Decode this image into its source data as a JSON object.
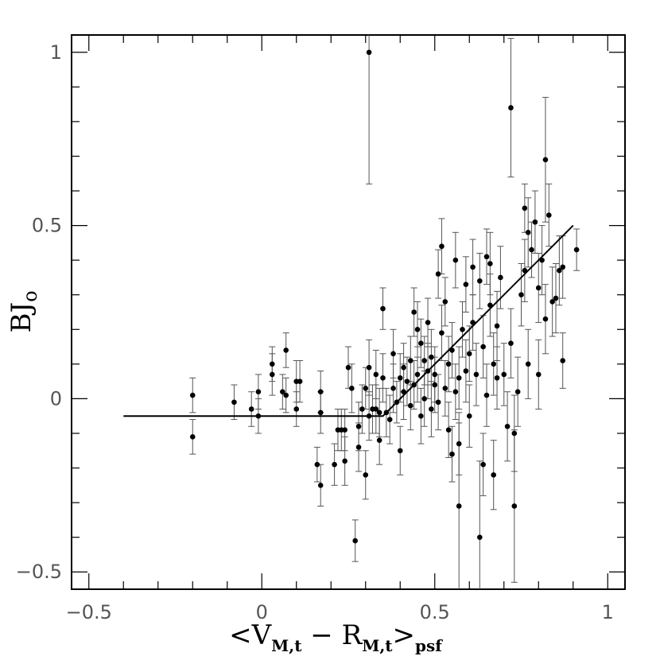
{
  "chart_data": {
    "type": "scatter",
    "title": "",
    "xlabel_main": "<V",
    "xlabel_sub1": "M,t",
    "xlabel_mid": " − R",
    "xlabel_sub2": "M,t",
    "xlabel_close": ">",
    "xlabel_sub3": "psf",
    "ylabel_main": "BJ",
    "ylabel_sub": "o",
    "xlim": [
      -0.55,
      1.05
    ],
    "ylim": [
      -0.55,
      1.05
    ],
    "xticks": [
      -0.5,
      0,
      0.5,
      1
    ],
    "xtick_labels": [
      "−0.5",
      "0",
      "0.5",
      "1"
    ],
    "yticks": [
      -0.5,
      0,
      0.5,
      1
    ],
    "ytick_labels": [
      "−0.5",
      "0",
      "0.5",
      "1"
    ],
    "grid": false,
    "fit_line": [
      [
        -0.4,
        -0.05
      ],
      [
        0.35,
        -0.05
      ],
      [
        0.9,
        0.5
      ]
    ],
    "points": [
      [
        -0.2,
        0.01,
        0.05
      ],
      [
        -0.2,
        -0.11,
        0.05
      ],
      [
        -0.08,
        -0.01,
        0.05
      ],
      [
        -0.03,
        -0.03,
        0.05
      ],
      [
        -0.01,
        0.02,
        0.05
      ],
      [
        -0.01,
        -0.05,
        0.05
      ],
      [
        0.03,
        0.1,
        0.05
      ],
      [
        0.03,
        0.07,
        0.06
      ],
      [
        0.06,
        0.02,
        0.05
      ],
      [
        0.07,
        0.14,
        0.05
      ],
      [
        0.07,
        0.01,
        0.05
      ],
      [
        0.1,
        0.05,
        0.06
      ],
      [
        0.11,
        0.05,
        0.06
      ],
      [
        0.1,
        -0.03,
        0.05
      ],
      [
        0.16,
        -0.19,
        0.05
      ],
      [
        0.17,
        -0.25,
        0.06
      ],
      [
        0.17,
        -0.04,
        0.06
      ],
      [
        0.17,
        0.02,
        0.06
      ],
      [
        0.21,
        -0.19,
        0.06
      ],
      [
        0.22,
        -0.09,
        0.06
      ],
      [
        0.23,
        -0.09,
        0.06
      ],
      [
        0.24,
        -0.18,
        0.07
      ],
      [
        0.24,
        -0.09,
        0.06
      ],
      [
        0.25,
        0.09,
        0.06
      ],
      [
        0.26,
        0.03,
        0.07
      ],
      [
        0.27,
        -0.41,
        0.06
      ],
      [
        0.28,
        -0.08,
        0.07
      ],
      [
        0.28,
        -0.14,
        0.07
      ],
      [
        0.29,
        -0.03,
        0.07
      ],
      [
        0.3,
        -0.22,
        0.07
      ],
      [
        0.3,
        0.03,
        0.06
      ],
      [
        0.31,
        0.09,
        0.08
      ],
      [
        0.31,
        -0.05,
        0.07
      ],
      [
        0.31,
        1.0,
        0.38
      ],
      [
        0.32,
        -0.03,
        0.07
      ],
      [
        0.33,
        -0.03,
        0.07
      ],
      [
        0.33,
        0.07,
        0.07
      ],
      [
        0.34,
        -0.04,
        0.07
      ],
      [
        0.34,
        -0.12,
        0.07
      ],
      [
        0.35,
        0.26,
        0.06
      ],
      [
        0.35,
        0.06,
        0.07
      ],
      [
        0.36,
        -0.04,
        0.07
      ],
      [
        0.37,
        -0.06,
        0.07
      ],
      [
        0.38,
        0.13,
        0.07
      ],
      [
        0.38,
        0.03,
        0.07
      ],
      [
        0.39,
        -0.01,
        0.06
      ],
      [
        0.4,
        0.06,
        0.07
      ],
      [
        0.4,
        -0.15,
        0.07
      ],
      [
        0.41,
        0.09,
        0.07
      ],
      [
        0.41,
        0.02,
        0.08
      ],
      [
        0.42,
        0.05,
        0.07
      ],
      [
        0.43,
        0.11,
        0.07
      ],
      [
        0.43,
        -0.02,
        0.07
      ],
      [
        0.44,
        0.25,
        0.07
      ],
      [
        0.44,
        0.04,
        0.07
      ],
      [
        0.45,
        0.07,
        0.08
      ],
      [
        0.45,
        0.2,
        0.08
      ],
      [
        0.46,
        0.16,
        0.07
      ],
      [
        0.46,
        -0.05,
        0.08
      ],
      [
        0.47,
        0.11,
        0.07
      ],
      [
        0.47,
        0.0,
        0.08
      ],
      [
        0.48,
        0.22,
        0.07
      ],
      [
        0.48,
        0.08,
        0.08
      ],
      [
        0.49,
        -0.03,
        0.08
      ],
      [
        0.49,
        0.12,
        0.08
      ],
      [
        0.5,
        0.07,
        0.08
      ],
      [
        0.5,
        0.04,
        0.08
      ],
      [
        0.51,
        0.36,
        0.07
      ],
      [
        0.51,
        -0.01,
        0.08
      ],
      [
        0.52,
        0.44,
        0.08
      ],
      [
        0.52,
        0.19,
        0.08
      ],
      [
        0.53,
        0.28,
        0.07
      ],
      [
        0.53,
        0.03,
        0.08
      ],
      [
        0.54,
        0.1,
        0.08
      ],
      [
        0.54,
        -0.09,
        0.08
      ],
      [
        0.55,
        0.14,
        0.08
      ],
      [
        0.55,
        -0.16,
        0.08
      ],
      [
        0.56,
        0.4,
        0.08
      ],
      [
        0.56,
        0.02,
        0.08
      ],
      [
        0.57,
        0.06,
        0.09
      ],
      [
        0.57,
        -0.13,
        0.09
      ],
      [
        0.57,
        -0.31,
        0.24
      ],
      [
        0.58,
        0.2,
        0.08
      ],
      [
        0.59,
        0.33,
        0.08
      ],
      [
        0.59,
        0.08,
        0.09
      ],
      [
        0.6,
        0.13,
        0.08
      ],
      [
        0.6,
        -0.05,
        0.09
      ],
      [
        0.61,
        0.38,
        0.08
      ],
      [
        0.61,
        0.22,
        0.08
      ],
      [
        0.62,
        0.07,
        0.09
      ],
      [
        0.63,
        0.34,
        0.08
      ],
      [
        0.63,
        -0.4,
        0.22
      ],
      [
        0.64,
        0.15,
        0.09
      ],
      [
        0.64,
        -0.19,
        0.09
      ],
      [
        0.65,
        0.41,
        0.08
      ],
      [
        0.65,
        0.01,
        0.09
      ],
      [
        0.66,
        0.39,
        0.09
      ],
      [
        0.66,
        0.27,
        0.09
      ],
      [
        0.67,
        -0.22,
        0.1
      ],
      [
        0.67,
        0.1,
        0.09
      ],
      [
        0.68,
        0.21,
        0.1
      ],
      [
        0.68,
        0.06,
        0.09
      ],
      [
        0.69,
        0.35,
        0.09
      ],
      [
        0.7,
        0.07,
        0.09
      ],
      [
        0.71,
        -0.08,
        0.1
      ],
      [
        0.72,
        0.16,
        0.1
      ],
      [
        0.72,
        0.84,
        0.2
      ],
      [
        0.73,
        -0.1,
        0.11
      ],
      [
        0.73,
        -0.31,
        0.22
      ],
      [
        0.74,
        0.02,
        0.1
      ],
      [
        0.75,
        0.3,
        0.09
      ],
      [
        0.76,
        0.55,
        0.07
      ],
      [
        0.76,
        0.37,
        0.09
      ],
      [
        0.77,
        0.1,
        0.1
      ],
      [
        0.77,
        0.48,
        0.1
      ],
      [
        0.78,
        0.43,
        0.08
      ],
      [
        0.79,
        0.51,
        0.09
      ],
      [
        0.8,
        0.32,
        0.1
      ],
      [
        0.8,
        0.07,
        0.1
      ],
      [
        0.81,
        0.4,
        0.1
      ],
      [
        0.82,
        0.69,
        0.18
      ],
      [
        0.82,
        0.23,
        0.1
      ],
      [
        0.83,
        0.53,
        0.09
      ],
      [
        0.84,
        0.28,
        0.1
      ],
      [
        0.85,
        0.29,
        0.1
      ],
      [
        0.86,
        0.37,
        0.1
      ],
      [
        0.87,
        0.38,
        0.09
      ],
      [
        0.87,
        0.11,
        0.08
      ],
      [
        0.91,
        0.43,
        0.06
      ]
    ]
  }
}
